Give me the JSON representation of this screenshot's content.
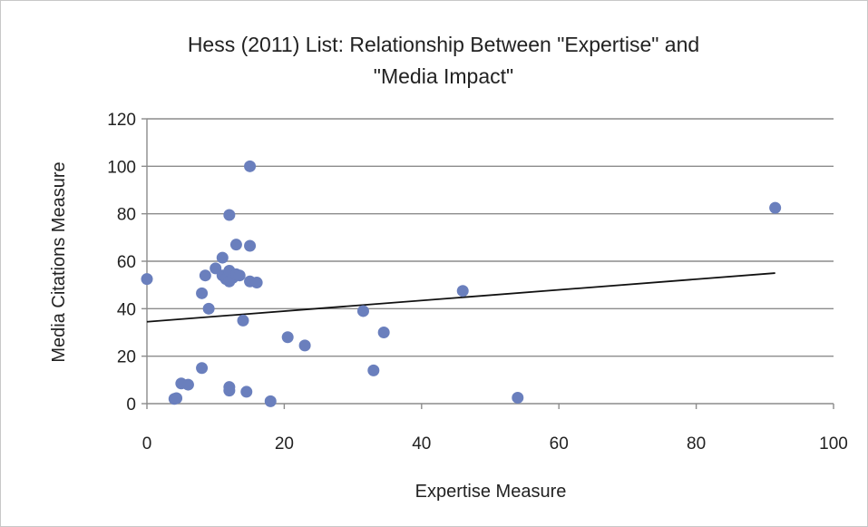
{
  "chart_data": {
    "type": "scatter",
    "title_lines": [
      "Hess (2011) List: Relationship Between \"Expertise\" and",
      "\"Media Impact\""
    ],
    "xlabel": "Expertise Measure",
    "ylabel": "Media Citations Measure",
    "xlim": [
      0,
      100
    ],
    "ylim": [
      0,
      120
    ],
    "xticks": [
      0,
      20,
      40,
      60,
      80,
      100
    ],
    "yticks": [
      0,
      20,
      40,
      60,
      80,
      100,
      120
    ],
    "grid": "horizontal",
    "legend": "none",
    "points": [
      {
        "x": 0,
        "y": 52.5
      },
      {
        "x": 4,
        "y": 2
      },
      {
        "x": 4.3,
        "y": 2.3
      },
      {
        "x": 5,
        "y": 8.5
      },
      {
        "x": 6,
        "y": 8
      },
      {
        "x": 8,
        "y": 15
      },
      {
        "x": 8,
        "y": 46.5
      },
      {
        "x": 8.5,
        "y": 54
      },
      {
        "x": 9,
        "y": 40
      },
      {
        "x": 10,
        "y": 57
      },
      {
        "x": 11,
        "y": 61.5
      },
      {
        "x": 11,
        "y": 54
      },
      {
        "x": 11.5,
        "y": 52.5
      },
      {
        "x": 12,
        "y": 79.5
      },
      {
        "x": 12,
        "y": 56
      },
      {
        "x": 12,
        "y": 51.5
      },
      {
        "x": 12,
        "y": 7
      },
      {
        "x": 12,
        "y": 5.5
      },
      {
        "x": 12.5,
        "y": 53
      },
      {
        "x": 13,
        "y": 67
      },
      {
        "x": 13,
        "y": 54.5
      },
      {
        "x": 13.5,
        "y": 54
      },
      {
        "x": 14,
        "y": 35
      },
      {
        "x": 14.5,
        "y": 5
      },
      {
        "x": 15,
        "y": 100
      },
      {
        "x": 15,
        "y": 66.5
      },
      {
        "x": 15,
        "y": 51.5
      },
      {
        "x": 16,
        "y": 51
      },
      {
        "x": 18,
        "y": 1
      },
      {
        "x": 20.5,
        "y": 28
      },
      {
        "x": 23,
        "y": 24.5
      },
      {
        "x": 31.5,
        "y": 39
      },
      {
        "x": 33,
        "y": 14
      },
      {
        "x": 34.5,
        "y": 30
      },
      {
        "x": 46,
        "y": 47.5
      },
      {
        "x": 54,
        "y": 2.5
      },
      {
        "x": 91.5,
        "y": 82.5
      }
    ],
    "trendline": {
      "x": [
        0,
        91.5
      ],
      "y": [
        34.5,
        55
      ]
    },
    "colors": {
      "points": "#6a7fbd",
      "trendline": "#111111",
      "grid": "#8c8c8c",
      "text": "#222222"
    }
  }
}
